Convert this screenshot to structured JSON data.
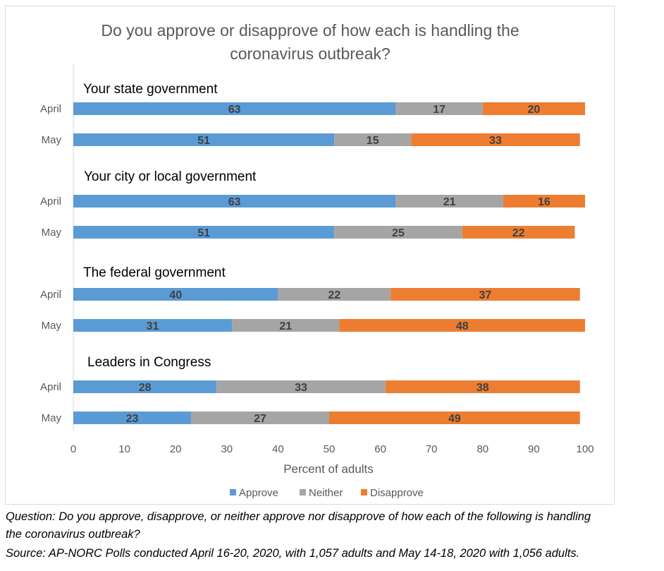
{
  "chart_data": {
    "type": "bar",
    "stacked": true,
    "orientation": "horizontal",
    "title": "Do you approve or disapprove of how each is handling the coronavirus outbreak?",
    "title_lines": [
      "Do you approve or disapprove of how each is handling the",
      "coronavirus outbreak?"
    ],
    "xlabel": "Percent of adults",
    "xlim": [
      0,
      100
    ],
    "xticks": [
      0,
      10,
      20,
      30,
      40,
      50,
      60,
      70,
      80,
      90,
      100
    ],
    "grid": false,
    "legend_position": "bottom",
    "series_colors": {
      "Approve": "#5b9bd5",
      "Neither": "#a5a5a5",
      "Disapprove": "#ed7d31"
    },
    "series_names": [
      "Approve",
      "Neither",
      "Disapprove"
    ],
    "groups": [
      {
        "label": "Your state government",
        "rows": [
          {
            "category": "April",
            "values": [
              63,
              17,
              20
            ]
          },
          {
            "category": "May",
            "values": [
              51,
              15,
              33
            ]
          }
        ]
      },
      {
        "label": "Your city or local government",
        "rows": [
          {
            "category": "April",
            "values": [
              63,
              21,
              16
            ]
          },
          {
            "category": "May",
            "values": [
              51,
              25,
              22
            ]
          }
        ]
      },
      {
        "label": "The federal government",
        "rows": [
          {
            "category": "April",
            "values": [
              40,
              22,
              37
            ]
          },
          {
            "category": "May",
            "values": [
              31,
              21,
              48
            ]
          }
        ]
      },
      {
        "label": "Leaders in Congress",
        "rows": [
          {
            "category": "April",
            "values": [
              28,
              33,
              38
            ]
          },
          {
            "category": "May",
            "values": [
              23,
              27,
              49
            ]
          }
        ]
      }
    ]
  },
  "notes": {
    "question_line1": "Question: Do you approve, disapprove, or neither approve nor disapprove of how each of the following is handling",
    "question_line2": "the coronavirus outbreak?",
    "source": "Source: AP-NORC Polls conducted April 16-20, 2020, with 1,057 adults and May 14-18, 2020 with 1,056 adults."
  }
}
